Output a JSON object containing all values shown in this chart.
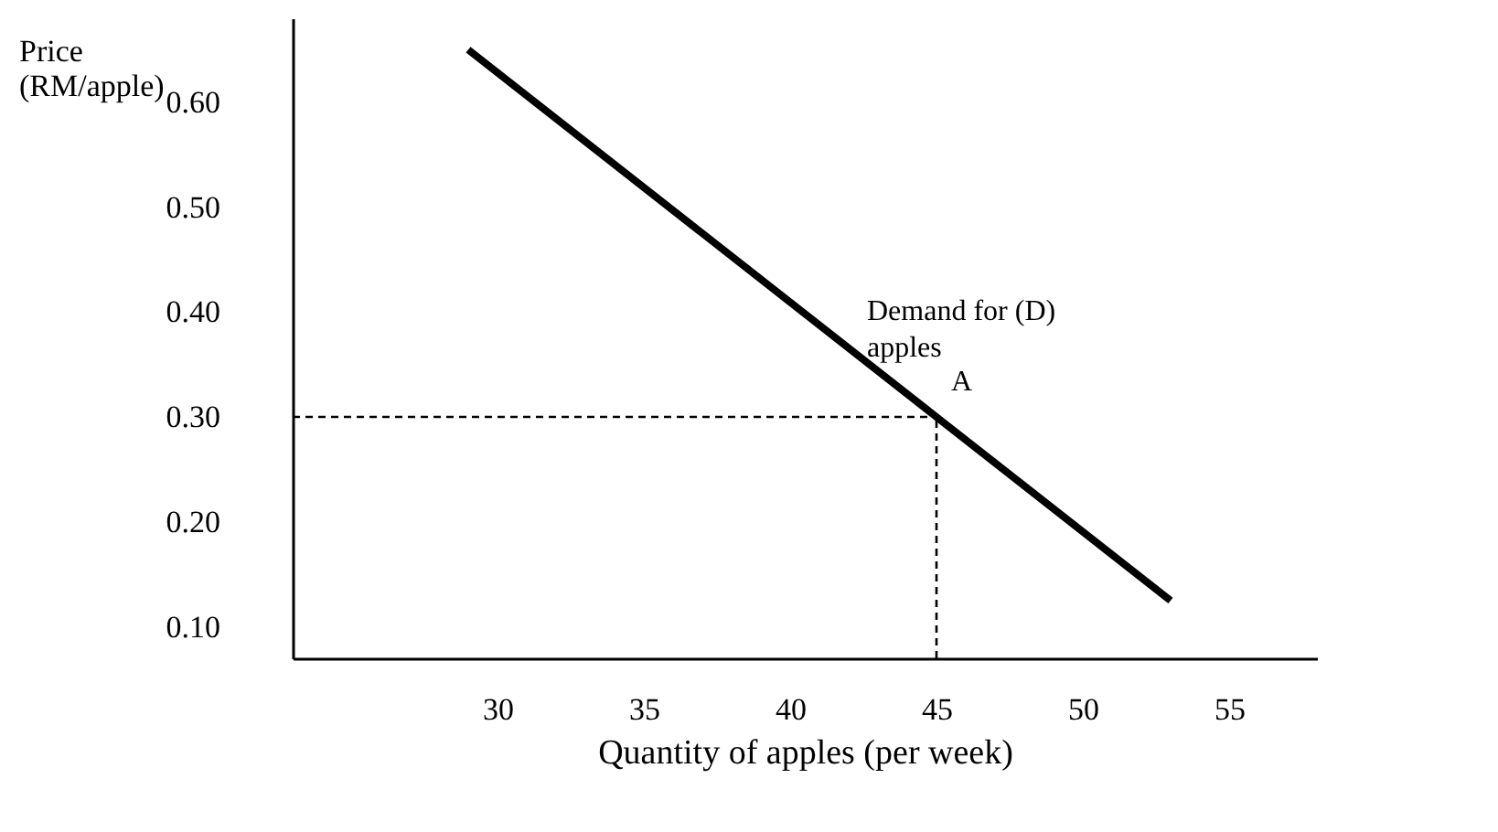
{
  "chart_data": {
    "type": "line",
    "xlabel": "Quantity of apples (per week)",
    "ylabel": "Price (RM/apple)",
    "x": [
      29,
      45,
      53
    ],
    "series": [
      {
        "color": "#000000",
        "values": [
          0.65,
          0.3,
          0.125
        ]
      }
    ],
    "xlim": [
      23,
      58
    ],
    "ylim": [
      0.07,
      0.68
    ],
    "xticks": [
      30,
      35,
      40,
      45,
      50,
      55
    ],
    "yticks": [
      {
        "value": 0.1,
        "label": "0.10"
      },
      {
        "value": 0.2,
        "label": "0.20"
      },
      {
        "value": 0.3,
        "label": "0.30"
      },
      {
        "value": 0.4,
        "label": "0.40"
      },
      {
        "value": 0.5,
        "label": "0.50"
      },
      {
        "value": 0.6,
        "label": "0.60"
      }
    ],
    "ref_lines": [
      {
        "axis": "x",
        "value": 45,
        "line_style": "dashed"
      },
      {
        "axis": "y",
        "value": 0.3,
        "line_style": "dashed"
      }
    ],
    "annotations": [
      {
        "text": "Demand for (D) apples",
        "x": 41,
        "y": 0.3875
      },
      {
        "text": "A",
        "x": 45,
        "y": 0.31
      }
    ],
    "grid": false,
    "marker": "none",
    "line_style": "solid"
  }
}
